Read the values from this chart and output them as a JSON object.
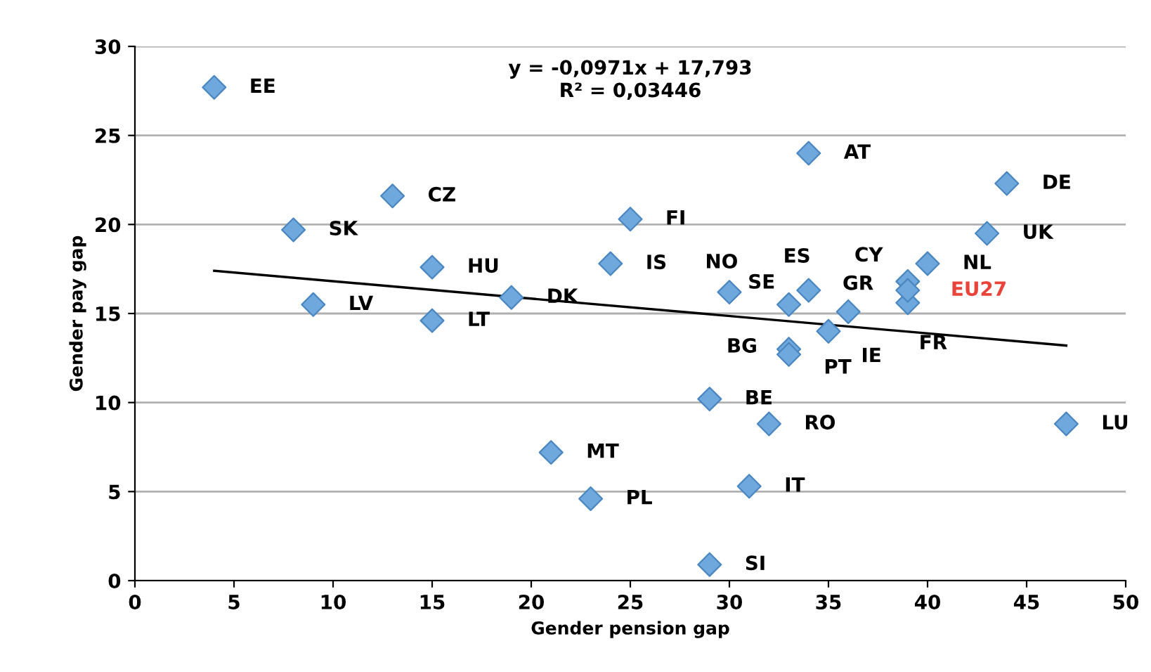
{
  "chart_data": {
    "type": "scatter",
    "xlabel": "Gender pension gap",
    "ylabel": "Gender pay gap",
    "xlim": [
      0,
      50
    ],
    "xticks": [
      0,
      5,
      10,
      15,
      20,
      25,
      30,
      35,
      40,
      45,
      50
    ],
    "ylim": [
      0,
      30
    ],
    "yticks": [
      0,
      5,
      10,
      15,
      20,
      25,
      30
    ],
    "grid": "y",
    "marker": "diamond",
    "series": [
      {
        "color": "#6fa8dc",
        "x": [
          4,
          13,
          8,
          15,
          9,
          15,
          19,
          25,
          24,
          30,
          33,
          34,
          36,
          34,
          44,
          43,
          40,
          39,
          39,
          35,
          33,
          33,
          29,
          32,
          47,
          21,
          31,
          23,
          29
        ],
        "values": [
          27.7,
          21.6,
          19.7,
          17.6,
          15.5,
          14.6,
          15.9,
          20.3,
          17.8,
          16.2,
          15.5,
          16.3,
          15.1,
          24.0,
          22.3,
          19.5,
          17.8,
          16.8,
          15.6,
          14.0,
          13.0,
          12.7,
          10.2,
          8.8,
          8.8,
          7.2,
          5.3,
          4.6,
          0.9
        ]
      },
      {
        "name": "EU27",
        "color": "#6fa8dc",
        "x": [
          39
        ],
        "values": [
          16.3
        ]
      },
      {
        "type": "line",
        "color": "#000000",
        "marker": "none",
        "x": [
          4,
          47
        ],
        "values": [
          17.4,
          13.2
        ]
      }
    ],
    "annotations": [
      {
        "text": "EE",
        "x": 4,
        "y": 27.7
      },
      {
        "text": "CZ",
        "x": 13,
        "y": 21.6
      },
      {
        "text": "SK",
        "x": 8,
        "y": 19.7
      },
      {
        "text": "HU",
        "x": 15,
        "y": 17.6
      },
      {
        "text": "LV",
        "x": 9,
        "y": 15.5
      },
      {
        "text": "LT",
        "x": 15,
        "y": 14.6
      },
      {
        "text": "DK",
        "x": 19,
        "y": 15.9
      },
      {
        "text": "FI",
        "x": 25,
        "y": 20.3
      },
      {
        "text": "IS",
        "x": 24,
        "y": 17.8
      },
      {
        "text": "NO",
        "x": 30,
        "y": 16.2
      },
      {
        "text": "SE",
        "x": 33,
        "y": 15.5
      },
      {
        "text": "ES",
        "x": 34,
        "y": 16.3
      },
      {
        "text": "GR",
        "x": 36,
        "y": 15.1
      },
      {
        "text": "AT",
        "x": 34,
        "y": 24.0
      },
      {
        "text": "DE",
        "x": 44,
        "y": 22.3
      },
      {
        "text": "UK",
        "x": 43,
        "y": 19.5
      },
      {
        "text": "NL",
        "x": 40,
        "y": 17.8
      },
      {
        "text": "CY",
        "x": 39,
        "y": 16.8
      },
      {
        "text": "FR",
        "x": 39,
        "y": 15.6
      },
      {
        "text": "IE",
        "x": 35,
        "y": 14.0
      },
      {
        "text": "BG",
        "x": 33,
        "y": 13.0
      },
      {
        "text": "PT",
        "x": 33,
        "y": 12.7
      },
      {
        "text": "BE",
        "x": 29,
        "y": 10.2
      },
      {
        "text": "RO",
        "x": 32,
        "y": 8.8
      },
      {
        "text": "LU",
        "x": 47,
        "y": 8.8
      },
      {
        "text": "MT",
        "x": 21,
        "y": 7.2
      },
      {
        "text": "IT",
        "x": 31,
        "y": 5.3
      },
      {
        "text": "PL",
        "x": 23,
        "y": 4.6
      },
      {
        "text": "SI",
        "x": 29,
        "y": 0.9
      },
      "y = -0,0971x + 17,793",
      "R² = 0,03446"
    ]
  }
}
